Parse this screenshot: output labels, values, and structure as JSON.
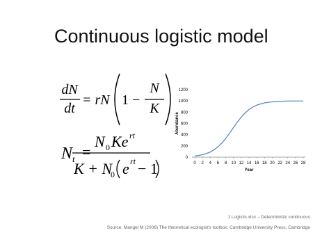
{
  "title": "Continuous logistic model",
  "equations": [
    {
      "numerator": "dN",
      "denominator": "dt",
      "equals": "= rN",
      "one_minus": "1 −",
      "inner_numerator": "N",
      "inner_denominator": "K"
    },
    {
      "lhs": "N",
      "lhs_sub": "t",
      "equals": "=",
      "num_n": "N",
      "num_sub": "0",
      "num_ke": "Ke",
      "num_exp": "rt",
      "den_k": "K + N",
      "den_sub": "0",
      "den_e": "e",
      "den_exp": "rt",
      "den_tail": "− 1"
    }
  ],
  "chart_data": {
    "type": "line",
    "x": [
      0,
      1,
      2,
      3,
      4,
      5,
      6,
      7,
      8,
      9,
      10,
      11,
      12,
      13,
      14,
      15,
      16,
      17,
      18,
      19,
      20,
      21,
      22,
      23,
      24,
      25,
      26,
      27,
      28
    ],
    "values": [
      20,
      30,
      43,
      63,
      91,
      131,
      184,
      251,
      333,
      428,
      527,
      624,
      713,
      787,
      847,
      892,
      925,
      948,
      965,
      976,
      984,
      989,
      993,
      995,
      997,
      998,
      999,
      999,
      999
    ],
    "color": "#5b8ac6",
    "xlim": [
      0,
      28
    ],
    "xticks": [
      0,
      2,
      4,
      6,
      8,
      10,
      12,
      14,
      16,
      18,
      20,
      22,
      24,
      26,
      28
    ],
    "ylim": [
      0,
      1200
    ],
    "yticks": [
      0,
      200,
      400,
      600,
      800,
      1000,
      1200
    ],
    "x_label": "Year",
    "y_label": "Abundance",
    "grid": false
  },
  "footer": {
    "file": "1 Logistic.xlsx – Deterministic continuous",
    "source": "Source: Mangel M (2006) The theoretical ecologist's toolbox. Cambridge University Press, Cambridge"
  }
}
